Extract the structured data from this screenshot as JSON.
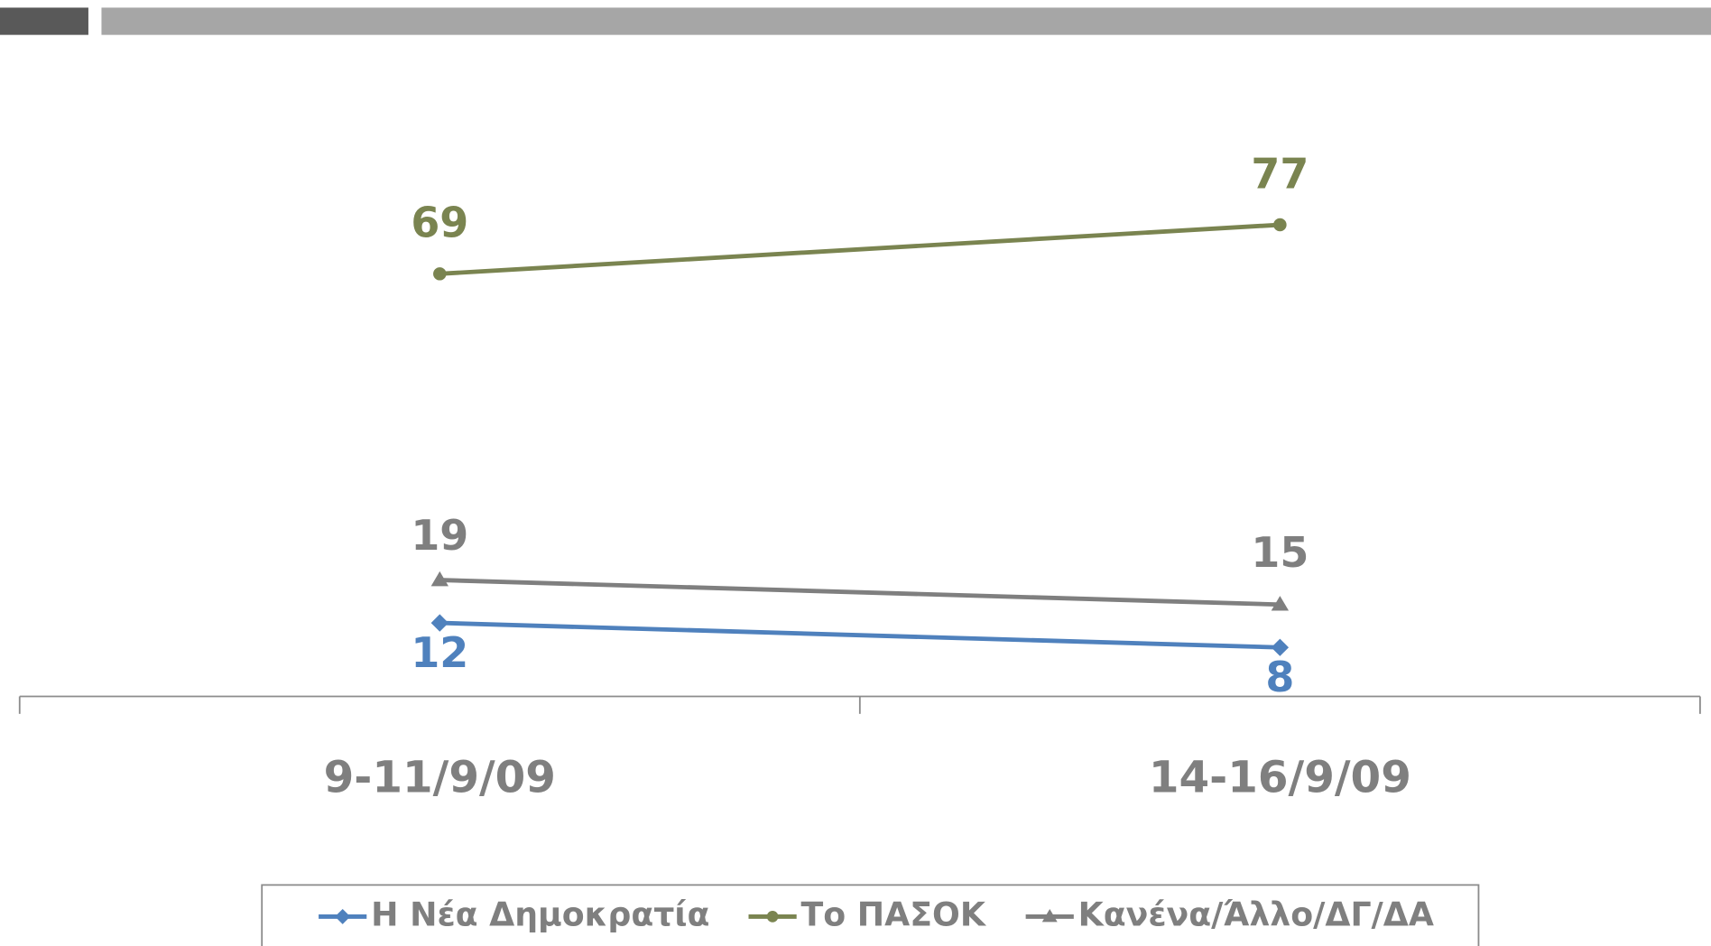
{
  "chart_data": {
    "type": "line",
    "categories": [
      "9-11/9/09",
      "14-16/9/09"
    ],
    "series": [
      {
        "name": "Η Νέα Δημοκρατία",
        "color": "#4f81bd",
        "marker": "diamond",
        "values": [
          12,
          8
        ]
      },
      {
        "name": "Το ΠΑΣΟΚ",
        "color": "#7a8450",
        "marker": "circle",
        "values": [
          69,
          77
        ]
      },
      {
        "name": "Κανένα/Άλλο/ΔΓ/ΔΑ",
        "color": "#7f7f7f",
        "marker": "triangle",
        "values": [
          19,
          15
        ]
      }
    ],
    "ylim": [
      0,
      100
    ],
    "grid": false,
    "legend": "bottom"
  }
}
